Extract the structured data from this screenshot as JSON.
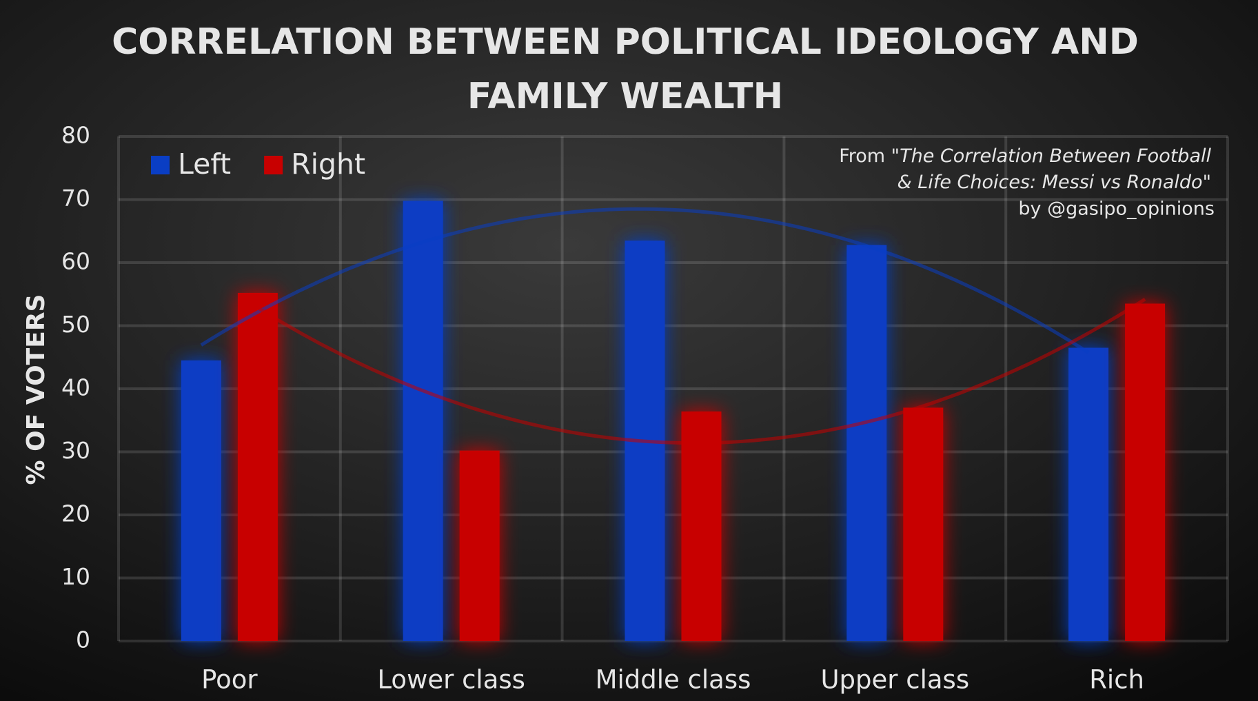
{
  "chart_data": {
    "type": "bar",
    "title": [
      "CORRELATION BETWEEN POLITICAL IDEOLOGY AND",
      "FAMILY WEALTH"
    ],
    "y_label": "% OF VOTERS",
    "annotation": [
      [
        "From \"",
        "The Correlation Between Football"
      ],
      [
        "& Life Choices: Messi vs Ronaldo",
        "\""
      ],
      [
        "by @gasipo_opinions"
      ]
    ],
    "categories": [
      "Poor",
      "Lower class",
      "Middle class",
      "Upper class",
      "Rich"
    ],
    "series": [
      {
        "name": "Left",
        "color": "#0a3ec4",
        "values": [
          44.5,
          69.8,
          63.5,
          62.8,
          46.5
        ]
      },
      {
        "name": "Right",
        "color": "#c80000",
        "values": [
          55.2,
          30.2,
          36.4,
          37.0,
          53.5
        ]
      }
    ],
    "ylim": [
      0,
      80
    ],
    "yticks": [
      0,
      10,
      20,
      30,
      40,
      50,
      60,
      70,
      80
    ],
    "grid": true,
    "legend": "top-left",
    "trendline": true
  }
}
